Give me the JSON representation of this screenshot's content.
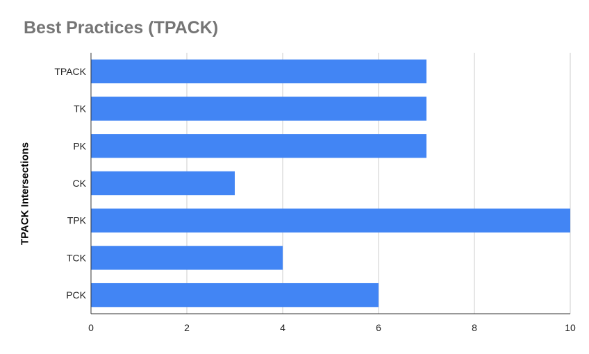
{
  "chart_data": {
    "type": "bar",
    "orientation": "horizontal",
    "title": "Best Practices (TPACK)",
    "xlabel": "",
    "ylabel": "TPACK Intersections",
    "categories": [
      "TPACK",
      "TK",
      "PK",
      "CK",
      "TPK",
      "TCK",
      "PCK"
    ],
    "values": [
      7,
      7,
      7,
      3,
      10,
      4,
      6
    ],
    "xlim": [
      0,
      10
    ],
    "xticks": [
      "0",
      "2",
      "4",
      "6",
      "8",
      "10"
    ],
    "grid": true,
    "legend": "none",
    "colors": {
      "bar": "#4285F4",
      "grid": "#CCCCCC",
      "axis": "#333333",
      "title": "#757575"
    }
  }
}
